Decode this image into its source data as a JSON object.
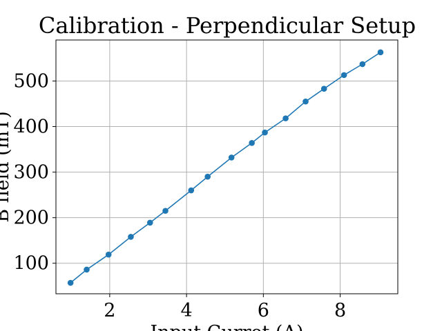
{
  "chart_data": {
    "type": "line",
    "title": "Calibration - Perpendicular Setup",
    "xlabel": "Input Curret (A)",
    "ylabel": "B field (mT)",
    "xlim": [
      0.6,
      9.5
    ],
    "ylim": [
      33,
      590
    ],
    "xticks": [
      2,
      4,
      6,
      8
    ],
    "yticks": [
      100,
      200,
      300,
      400,
      500
    ],
    "grid": true,
    "colors": {
      "series": "#1f77b4"
    },
    "series": [
      {
        "x": [
          0.98,
          1.4,
          1.97,
          2.55,
          3.05,
          3.45,
          4.12,
          4.55,
          5.17,
          5.7,
          6.04,
          6.58,
          7.1,
          7.58,
          8.1,
          8.58,
          9.05
        ],
        "y": [
          57,
          86,
          119,
          158,
          189,
          215,
          260,
          290,
          332,
          364,
          387,
          418,
          455,
          483,
          513,
          537,
          563
        ]
      }
    ]
  }
}
